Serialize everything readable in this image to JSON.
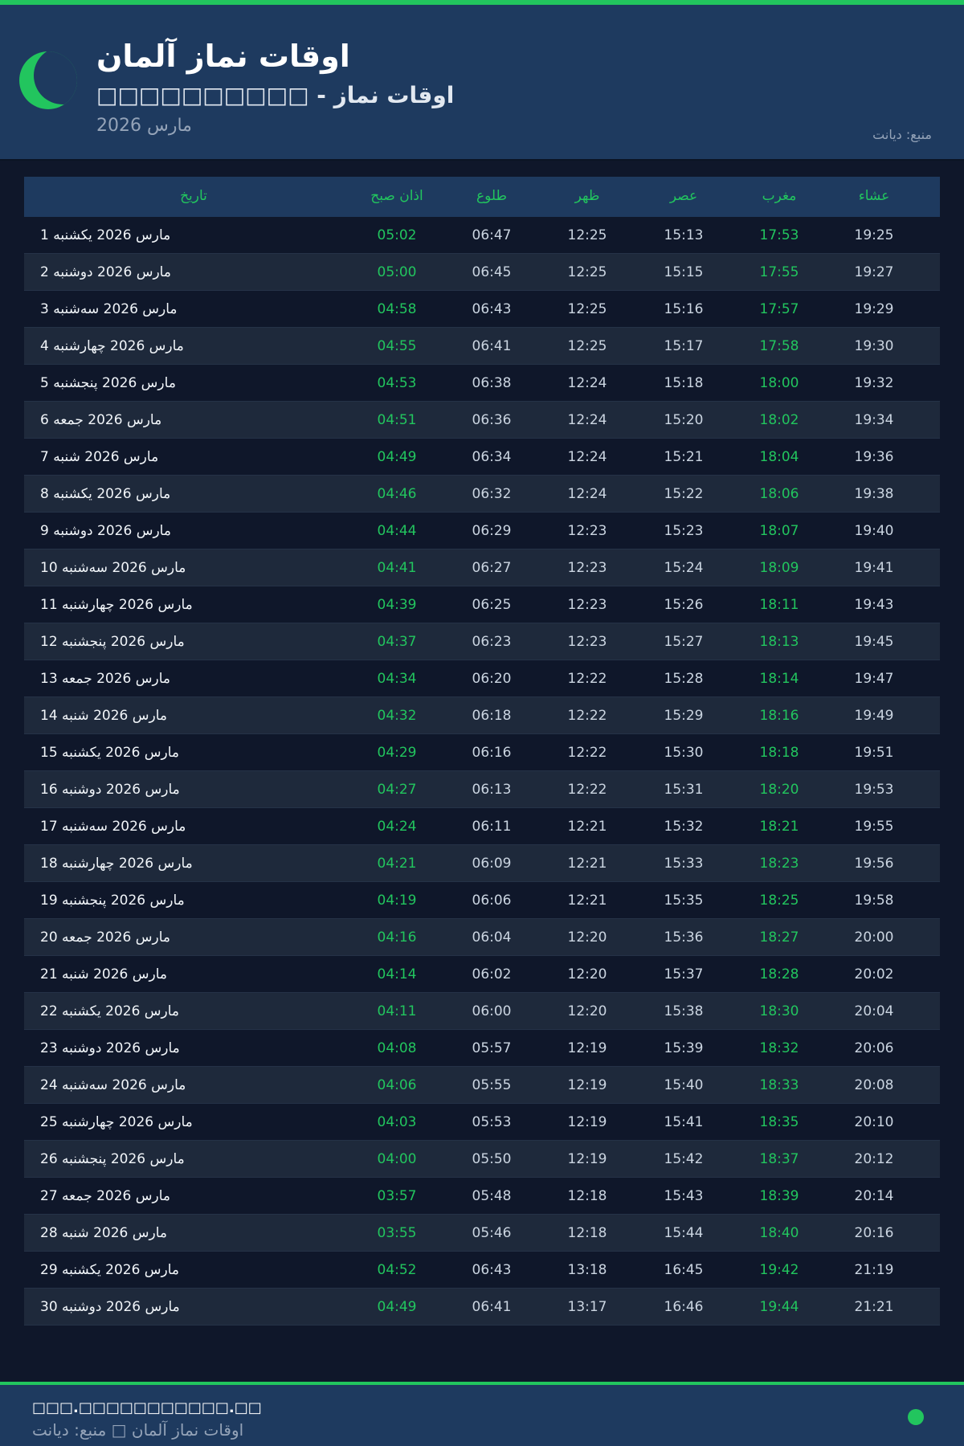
{
  "header": {
    "title": "اوقات نماز آلمان",
    "subtitle": "□□□□□□□□□□ - اوقات نماز",
    "month": "مارس 2026",
    "source": "منبع: دیانت"
  },
  "colors": {
    "accent": "#22c55e",
    "header_bg": "#1e3a5f",
    "page_bg": "#0f172a"
  },
  "table": {
    "columns": [
      "تاریخ",
      "اذان صبح",
      "طلوع",
      "ظهر",
      "عصر",
      "مغرب",
      "عشاء"
    ],
    "rows": [
      [
        "1 مارس 2026 یکشنبه",
        "05:02",
        "06:47",
        "12:25",
        "15:13",
        "17:53",
        "19:25"
      ],
      [
        "2 مارس 2026 دوشنبه",
        "05:00",
        "06:45",
        "12:25",
        "15:15",
        "17:55",
        "19:27"
      ],
      [
        "3 مارس 2026 سه‌شنبه",
        "04:58",
        "06:43",
        "12:25",
        "15:16",
        "17:57",
        "19:29"
      ],
      [
        "4 مارس 2026 چهارشنبه",
        "04:55",
        "06:41",
        "12:25",
        "15:17",
        "17:58",
        "19:30"
      ],
      [
        "5 مارس 2026 پنجشنبه",
        "04:53",
        "06:38",
        "12:24",
        "15:18",
        "18:00",
        "19:32"
      ],
      [
        "6 مارس 2026 جمعه",
        "04:51",
        "06:36",
        "12:24",
        "15:20",
        "18:02",
        "19:34"
      ],
      [
        "7 مارس 2026 شنبه",
        "04:49",
        "06:34",
        "12:24",
        "15:21",
        "18:04",
        "19:36"
      ],
      [
        "8 مارس 2026 یکشنبه",
        "04:46",
        "06:32",
        "12:24",
        "15:22",
        "18:06",
        "19:38"
      ],
      [
        "9 مارس 2026 دوشنبه",
        "04:44",
        "06:29",
        "12:23",
        "15:23",
        "18:07",
        "19:40"
      ],
      [
        "10 مارس 2026 سه‌شنبه",
        "04:41",
        "06:27",
        "12:23",
        "15:24",
        "18:09",
        "19:41"
      ],
      [
        "11 مارس 2026 چهارشنبه",
        "04:39",
        "06:25",
        "12:23",
        "15:26",
        "18:11",
        "19:43"
      ],
      [
        "12 مارس 2026 پنجشنبه",
        "04:37",
        "06:23",
        "12:23",
        "15:27",
        "18:13",
        "19:45"
      ],
      [
        "13 مارس 2026 جمعه",
        "04:34",
        "06:20",
        "12:22",
        "15:28",
        "18:14",
        "19:47"
      ],
      [
        "14 مارس 2026 شنبه",
        "04:32",
        "06:18",
        "12:22",
        "15:29",
        "18:16",
        "19:49"
      ],
      [
        "15 مارس 2026 یکشنبه",
        "04:29",
        "06:16",
        "12:22",
        "15:30",
        "18:18",
        "19:51"
      ],
      [
        "16 مارس 2026 دوشنبه",
        "04:27",
        "06:13",
        "12:22",
        "15:31",
        "18:20",
        "19:53"
      ],
      [
        "17 مارس 2026 سه‌شنبه",
        "04:24",
        "06:11",
        "12:21",
        "15:32",
        "18:21",
        "19:55"
      ],
      [
        "18 مارس 2026 چهارشنبه",
        "04:21",
        "06:09",
        "12:21",
        "15:33",
        "18:23",
        "19:56"
      ],
      [
        "19 مارس 2026 پنجشنبه",
        "04:19",
        "06:06",
        "12:21",
        "15:35",
        "18:25",
        "19:58"
      ],
      [
        "20 مارس 2026 جمعه",
        "04:16",
        "06:04",
        "12:20",
        "15:36",
        "18:27",
        "20:00"
      ],
      [
        "21 مارس 2026 شنبه",
        "04:14",
        "06:02",
        "12:20",
        "15:37",
        "18:28",
        "20:02"
      ],
      [
        "22 مارس 2026 یکشنبه",
        "04:11",
        "06:00",
        "12:20",
        "15:38",
        "18:30",
        "20:04"
      ],
      [
        "23 مارس 2026 دوشنبه",
        "04:08",
        "05:57",
        "12:19",
        "15:39",
        "18:32",
        "20:06"
      ],
      [
        "24 مارس 2026 سه‌شنبه",
        "04:06",
        "05:55",
        "12:19",
        "15:40",
        "18:33",
        "20:08"
      ],
      [
        "25 مارس 2026 چهارشنبه",
        "04:03",
        "05:53",
        "12:19",
        "15:41",
        "18:35",
        "20:10"
      ],
      [
        "26 مارس 2026 پنجشنبه",
        "04:00",
        "05:50",
        "12:19",
        "15:42",
        "18:37",
        "20:12"
      ],
      [
        "27 مارس 2026 جمعه",
        "03:57",
        "05:48",
        "12:18",
        "15:43",
        "18:39",
        "20:14"
      ],
      [
        "28 مارس 2026 شنبه",
        "03:55",
        "05:46",
        "12:18",
        "15:44",
        "18:40",
        "20:16"
      ],
      [
        "29 مارس 2026 یکشنبه",
        "04:52",
        "06:43",
        "13:18",
        "16:45",
        "19:42",
        "21:19"
      ],
      [
        "30 مارس 2026 دوشنبه",
        "04:49",
        "06:41",
        "13:17",
        "16:46",
        "19:44",
        "21:21"
      ]
    ]
  },
  "footer": {
    "site": "□□□.□□□□□□□□□□□.□□",
    "caption": "اوقات نماز آلمان □ منبع: دیانت"
  }
}
